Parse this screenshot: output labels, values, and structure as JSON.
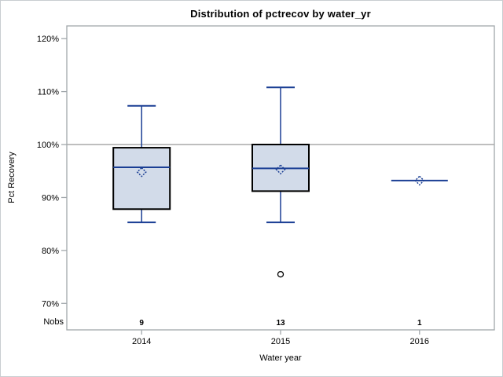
{
  "colors": {
    "frame": "#a1a7ab",
    "reference_line": "#a9a9a9",
    "box_fill": "#d2dbe9",
    "box_border": "#000000",
    "blue_line": "#1a3e94",
    "outlier": "#000000",
    "text": "#000000"
  },
  "chart_data": {
    "type": "boxplot",
    "title": "Distribution of pctrecov by water_yr",
    "xlabel": "Water year",
    "ylabel": "Pct Recovery",
    "nobs_label": "Nobs",
    "ylim": [
      65.0,
      122.4
    ],
    "y_ticks": [
      {
        "value": 70,
        "label": "70%"
      },
      {
        "value": 80,
        "label": "80%"
      },
      {
        "value": 90,
        "label": "90%"
      },
      {
        "value": 100,
        "label": "100%"
      },
      {
        "value": 110,
        "label": "110%"
      },
      {
        "value": 120,
        "label": "120%"
      }
    ],
    "reference_line": 100,
    "grid": "off",
    "legend": "none",
    "categories": [
      "2014",
      "2015",
      "2016"
    ],
    "nobs": [
      "9",
      "13",
      "1"
    ],
    "series": [
      {
        "category": "2014",
        "nobs": 9,
        "whisker_low": 85.3,
        "q1": 87.8,
        "median": 95.7,
        "q3": 99.4,
        "whisker_high": 107.3,
        "mean": 94.8,
        "outliers": []
      },
      {
        "category": "2015",
        "nobs": 13,
        "whisker_low": 85.3,
        "q1": 91.2,
        "median": 95.5,
        "q3": 100.0,
        "whisker_high": 110.8,
        "mean": 95.3,
        "outliers": [
          75.5
        ]
      },
      {
        "category": "2016",
        "nobs": 1,
        "whisker_low": 93.2,
        "q1": 93.2,
        "median": 93.2,
        "q3": 93.2,
        "whisker_high": 93.2,
        "mean": 93.2,
        "outliers": []
      }
    ]
  }
}
